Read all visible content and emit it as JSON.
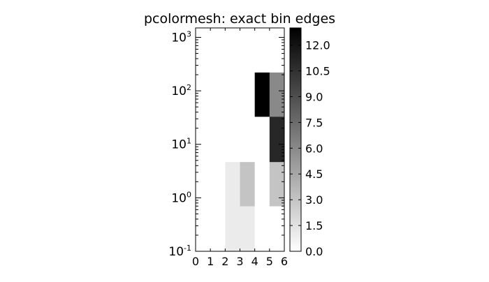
{
  "chart_data": {
    "type": "heatmap",
    "title": "pcolormesh: exact bin edges",
    "xlabel": "",
    "ylabel": "",
    "x_scale": "linear",
    "y_scale": "log",
    "xlim": [
      0,
      6
    ],
    "ylim": [
      0.1,
      1500
    ],
    "x_ticks": [
      0,
      1,
      2,
      3,
      4,
      5,
      6
    ],
    "y_ticks": [
      {
        "value": 0.1,
        "base": "10",
        "exp": "-1"
      },
      {
        "value": 1,
        "base": "10",
        "exp": "0"
      },
      {
        "value": 10,
        "base": "10",
        "exp": "1"
      },
      {
        "value": 100,
        "base": "10",
        "exp": "2"
      },
      {
        "value": 1000,
        "base": "10",
        "exp": "3"
      }
    ],
    "x_edges": [
      0,
      1,
      2,
      3,
      4,
      5,
      6
    ],
    "y_edges": [
      0.1,
      0.7,
      4.7,
      33,
      220
    ],
    "values": [
      [
        0,
        0,
        1,
        1,
        0,
        0
      ],
      [
        0,
        0,
        1,
        3,
        0,
        3
      ],
      [
        0,
        0,
        0,
        0,
        0,
        11
      ],
      [
        0,
        0,
        0,
        0,
        13,
        6
      ]
    ],
    "colormap": [
      "#ffffff",
      "#000000"
    ],
    "colorbar": {
      "vmin": 0,
      "vmax": 13,
      "ticks": [
        "0.0",
        "1.5",
        "3.0",
        "4.5",
        "6.0",
        "7.5",
        "9.0",
        "10.5",
        "12.0"
      ]
    },
    "grid": false
  }
}
